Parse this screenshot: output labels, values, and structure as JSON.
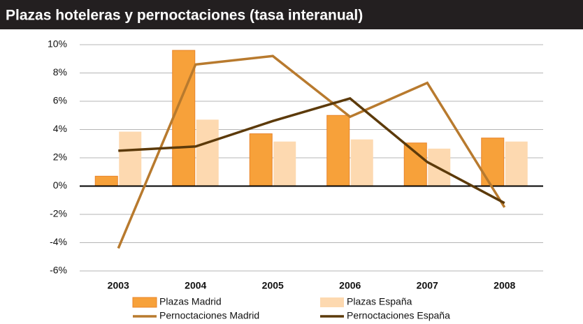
{
  "chart_data": {
    "type": "bar_line",
    "title": "Plazas hoteleras y pernoctaciones (tasa interanual)",
    "categories": [
      "2003",
      "2004",
      "2005",
      "2006",
      "2007",
      "2008"
    ],
    "series": [
      {
        "name": "Plazas Madrid",
        "type": "bar",
        "color": "#f7a13a",
        "values": [
          0.7,
          9.6,
          3.7,
          5.0,
          3.05,
          3.4
        ]
      },
      {
        "name": "Plazas España",
        "type": "bar",
        "color": "#fdd9b0",
        "values": [
          3.85,
          4.7,
          3.15,
          3.3,
          2.65,
          3.15
        ]
      },
      {
        "name": "Pernoctaciones Madrid",
        "type": "line",
        "color": "#b87a2e",
        "values": [
          -4.4,
          8.6,
          9.2,
          4.9,
          7.3,
          -1.5
        ]
      },
      {
        "name": "Pernoctaciones España",
        "type": "line",
        "color": "#5c3a0a",
        "values": [
          2.5,
          2.8,
          4.6,
          6.2,
          1.7,
          -1.2
        ]
      }
    ],
    "ylim": [
      -6,
      10
    ],
    "yticks": [
      {
        "value": -6,
        "label": "-6%"
      },
      {
        "value": -4,
        "label": "-4%"
      },
      {
        "value": -2,
        "label": "-2%"
      },
      {
        "value": 0,
        "label": "0%"
      },
      {
        "value": 2,
        "label": "2%"
      },
      {
        "value": 4,
        "label": "4%"
      },
      {
        "value": 6,
        "label": "6%"
      },
      {
        "value": 8,
        "label": "8%"
      },
      {
        "value": 10,
        "label": "10%"
      }
    ],
    "grid": true
  }
}
